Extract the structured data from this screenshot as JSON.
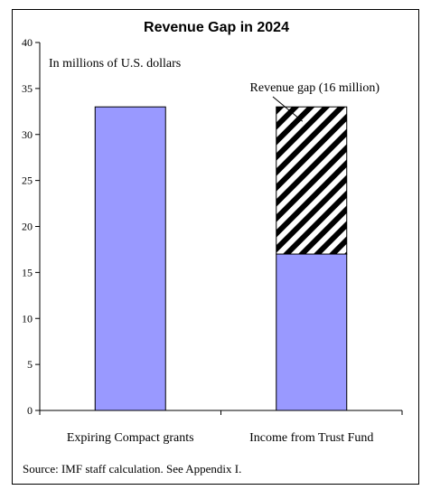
{
  "chart_data": {
    "type": "bar",
    "title": "Revenue Gap in 2024",
    "subtitle": "In millions of U.S. dollars",
    "categories": [
      "Expiring Compact grants",
      "Income from Trust Fund"
    ],
    "series": [
      {
        "values": [
          33,
          17
        ],
        "color": "#9999ff"
      },
      {
        "values": [
          0,
          16
        ],
        "pattern": "diagonal-hatch"
      }
    ],
    "annotation": {
      "text": "Revenue gap (16 million)",
      "points_to": "Income from Trust Fund"
    },
    "ylim": [
      0,
      40
    ],
    "yticks": [
      0,
      5,
      10,
      15,
      20,
      25,
      30,
      35,
      40
    ],
    "xlabel": "",
    "ylabel": "",
    "grid": false,
    "legend": "none"
  },
  "footer": {
    "source": "Source: IMF staff calculation. See Appendix I."
  }
}
